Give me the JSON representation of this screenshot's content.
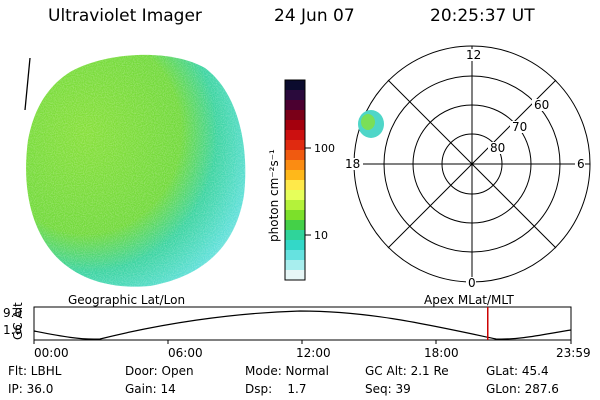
{
  "header": {
    "title": "Ultraviolet Imager",
    "date": "24 Jun 07",
    "time": "20:25:37 UT"
  },
  "colorbar": {
    "unit_label": "photon cm⁻²s⁻¹",
    "tick_100": "100",
    "tick_10": "10",
    "colors": [
      "#0b0b2e",
      "#2a0a3c",
      "#4b0030",
      "#7a0018",
      "#a4000d",
      "#cc1010",
      "#e02a10",
      "#f05a10",
      "#fb8c12",
      "#ffb81a",
      "#ffe94a",
      "#e6ff5a",
      "#b4f23a",
      "#7ce02a",
      "#44d048",
      "#2fd49a",
      "#33d8c8",
      "#66e2e0",
      "#a8eeee",
      "#e6f6f6"
    ]
  },
  "polar": {
    "label_12": "12",
    "label_18": "18",
    "label_6": "6",
    "label_0": "0",
    "label_60": "60",
    "label_70": "70",
    "label_80": "80"
  },
  "orbit": {
    "left_title": "Geographic Lat/Lon",
    "right_title": "Apex MLat/MLT",
    "axis_label": "GC Alt",
    "y_top": "9.0",
    "y_bottom": "1.8",
    "x_ticks": [
      "00:00",
      "06:00",
      "12:00",
      "18:00",
      "23:59"
    ],
    "current_marker_fraction": 0.845,
    "marker_color": "#cc0000"
  },
  "info": {
    "filter": "Flt: LBHL",
    "door": "Door: Open",
    "mode": "Mode: Normal",
    "gc_alt": "GC Alt: 2.1 Re",
    "glat": "GLat:  45.4",
    "ip": "IP: 36.0",
    "gain": "Gain: 14",
    "dsp": "Dsp:    1.7",
    "seq": "Seq: 39",
    "glon": "GLon: 287.6"
  }
}
